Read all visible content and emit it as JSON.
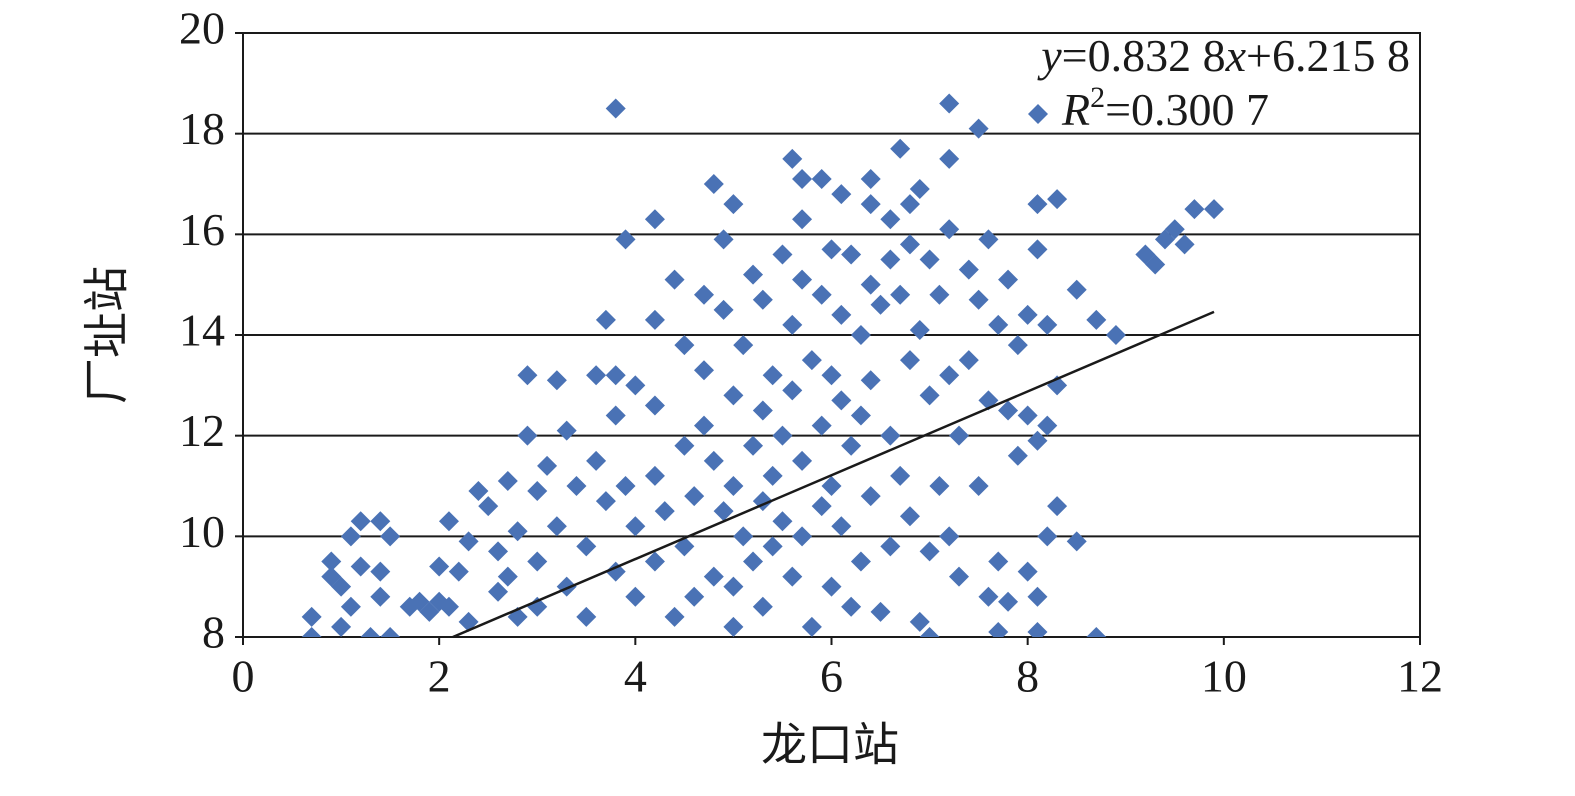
{
  "chart_data": {
    "type": "scatter",
    "x_label": "龙口站",
    "y_label": "厂址站",
    "equation": [
      "y",
      "=0.832 8",
      "x",
      "+6.215 8"
    ],
    "r_squared": [
      "R",
      "2",
      "=0.300 7"
    ],
    "xlim": [
      0,
      12
    ],
    "xticks": [
      0,
      2,
      4,
      6,
      8,
      10,
      12
    ],
    "ylim": [
      8,
      20
    ],
    "yticks": [
      8,
      10,
      12,
      14,
      16,
      18,
      20
    ],
    "grid": true,
    "series": [
      {
        "color": "#4a72b5",
        "x": [
          0.7,
          0.7,
          0.9,
          0.9,
          1.0,
          1.0,
          1.1,
          1.1,
          1.2,
          1.2,
          1.3,
          1.4,
          1.4,
          1.4,
          1.5,
          1.5,
          1.7,
          1.8,
          1.9,
          2.0,
          2.0,
          2.1,
          2.1,
          2.2,
          2.3,
          2.3,
          2.4,
          2.5,
          2.6,
          2.6,
          2.7,
          2.7,
          2.8,
          2.8,
          2.9,
          2.9,
          3.0,
          3.0,
          3.0,
          3.1,
          3.2,
          3.2,
          3.3,
          3.3,
          3.4,
          3.5,
          3.5,
          3.6,
          3.6,
          3.7,
          3.7,
          3.8,
          3.8,
          3.8,
          3.8,
          3.9,
          3.9,
          4.0,
          4.0,
          4.0,
          4.2,
          4.2,
          4.2,
          4.2,
          4.2,
          4.3,
          4.4,
          4.4,
          4.5,
          4.5,
          4.5,
          4.6,
          4.6,
          4.7,
          4.7,
          4.7,
          4.8,
          4.8,
          4.8,
          4.9,
          4.9,
          4.9,
          5.0,
          5.0,
          5.0,
          5.0,
          5.0,
          5.1,
          5.1,
          5.2,
          5.2,
          5.2,
          5.3,
          5.3,
          5.3,
          5.3,
          5.4,
          5.4,
          5.4,
          5.5,
          5.5,
          5.5,
          5.6,
          5.6,
          5.6,
          5.6,
          5.7,
          5.7,
          5.7,
          5.7,
          5.7,
          5.8,
          5.8,
          5.9,
          5.9,
          5.9,
          5.9,
          6.0,
          6.0,
          6.0,
          6.0,
          6.1,
          6.1,
          6.1,
          6.1,
          6.2,
          6.2,
          6.2,
          6.3,
          6.3,
          6.3,
          6.4,
          6.4,
          6.4,
          6.4,
          6.4,
          6.5,
          6.5,
          6.6,
          6.6,
          6.6,
          6.6,
          6.7,
          6.7,
          6.7,
          6.8,
          6.8,
          6.8,
          6.8,
          6.9,
          6.9,
          6.9,
          7.0,
          7.0,
          7.0,
          7.0,
          7.1,
          7.1,
          7.2,
          7.2,
          7.2,
          7.2,
          7.2,
          7.3,
          7.3,
          7.4,
          7.4,
          7.5,
          7.5,
          7.5,
          7.6,
          7.6,
          7.6,
          7.7,
          7.7,
          7.7,
          7.8,
          7.8,
          7.8,
          7.9,
          7.9,
          8.0,
          8.0,
          8.0,
          8.1,
          8.1,
          8.1,
          8.1,
          8.1,
          8.2,
          8.2,
          8.2,
          8.3,
          8.3,
          8.3,
          8.5,
          8.5,
          8.7,
          8.7,
          8.9,
          9.2,
          9.3,
          9.4,
          9.5,
          9.6,
          9.7,
          9.9
        ],
        "values": [
          8.4,
          8.0,
          9.5,
          9.2,
          9.0,
          8.2,
          8.6,
          10.0,
          10.3,
          9.4,
          8.0,
          10.3,
          9.3,
          8.8,
          10.0,
          8.0,
          8.6,
          8.7,
          8.5,
          8.7,
          9.4,
          8.6,
          10.3,
          9.3,
          8.3,
          9.9,
          10.9,
          10.6,
          8.9,
          9.7,
          11.1,
          9.2,
          8.4,
          10.1,
          13.2,
          12.0,
          10.9,
          9.5,
          8.6,
          11.4,
          13.1,
          10.2,
          12.1,
          9.0,
          11.0,
          9.8,
          8.4,
          13.2,
          11.5,
          14.3,
          10.7,
          18.5,
          13.2,
          12.4,
          9.3,
          15.9,
          11.0,
          13.0,
          10.2,
          8.8,
          16.3,
          14.3,
          12.6,
          11.2,
          9.5,
          10.5,
          15.1,
          8.4,
          13.8,
          11.8,
          9.8,
          10.8,
          8.8,
          14.8,
          13.3,
          12.2,
          17.0,
          11.5,
          9.2,
          15.9,
          14.5,
          10.5,
          16.6,
          12.8,
          11.0,
          9.0,
          8.2,
          13.8,
          10.0,
          15.2,
          11.8,
          9.5,
          14.7,
          12.5,
          10.7,
          8.6,
          13.2,
          11.2,
          9.8,
          15.6,
          12.0,
          10.3,
          17.5,
          14.2,
          12.9,
          9.2,
          17.1,
          16.3,
          15.1,
          11.5,
          10.0,
          13.5,
          8.2,
          17.1,
          14.8,
          12.2,
          10.6,
          15.7,
          13.2,
          11.0,
          9.0,
          16.8,
          14.4,
          12.7,
          10.2,
          15.6,
          11.8,
          8.6,
          14.0,
          12.4,
          9.5,
          17.1,
          16.6,
          15.0,
          13.1,
          10.8,
          14.6,
          8.5,
          16.3,
          15.5,
          12.0,
          9.8,
          17.7,
          14.8,
          11.2,
          16.6,
          15.8,
          13.5,
          10.4,
          16.9,
          14.1,
          8.3,
          15.5,
          12.8,
          9.7,
          8.0,
          14.8,
          11.0,
          18.6,
          17.5,
          16.1,
          13.2,
          10.0,
          12.0,
          9.2,
          15.3,
          13.5,
          18.1,
          14.7,
          11.0,
          15.9,
          12.7,
          8.8,
          14.2,
          9.5,
          8.1,
          15.1,
          12.5,
          8.7,
          13.8,
          11.6,
          14.4,
          12.4,
          9.3,
          16.6,
          15.7,
          11.9,
          8.8,
          8.1,
          14.2,
          12.2,
          10.0,
          16.7,
          13.0,
          10.6,
          14.9,
          9.9,
          14.3,
          8.0,
          14.0,
          15.6,
          15.4,
          15.9,
          16.1,
          15.8,
          16.5,
          16.5
        ]
      }
    ],
    "trendline": {
      "x": [
        2.14,
        9.9
      ],
      "values": [
        8.0,
        14.46
      ],
      "color": "#1a1a1a"
    }
  }
}
